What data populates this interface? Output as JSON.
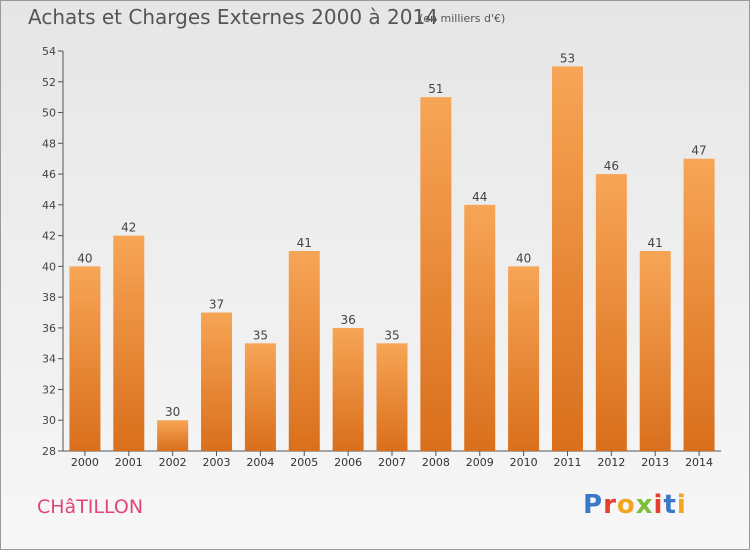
{
  "chart_data": {
    "type": "bar",
    "title": "Achats et Charges Externes 2000 à 2014",
    "subtitle": "(en milliers d'€)",
    "categories": [
      "2000",
      "2001",
      "2002",
      "2003",
      "2004",
      "2005",
      "2006",
      "2007",
      "2008",
      "2009",
      "2010",
      "2011",
      "2012",
      "2013",
      "2014"
    ],
    "values": [
      40,
      42,
      30,
      37,
      35,
      41,
      36,
      35,
      51,
      44,
      40,
      53,
      46,
      41,
      47
    ],
    "xlabel": "",
    "ylabel": "",
    "ylim": [
      28,
      54
    ],
    "yticks": [
      28,
      30,
      32,
      34,
      36,
      38,
      40,
      42,
      44,
      46,
      48,
      50,
      52,
      54
    ],
    "grid": false,
    "bar_color": "#f0913c"
  },
  "footer": {
    "commune": "CHâTILLON",
    "logo_text": "Proxiti",
    "commune_color": "#e0457a"
  }
}
